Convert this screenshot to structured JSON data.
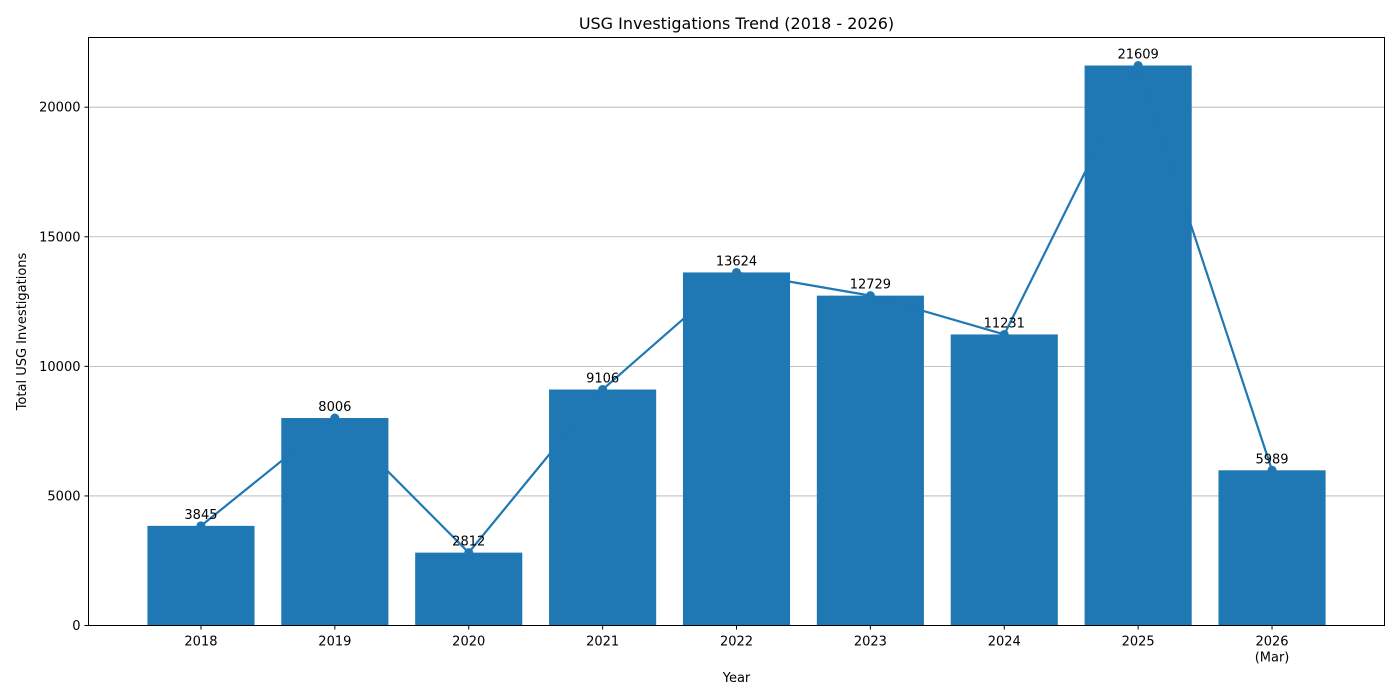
{
  "chart_data": {
    "type": "bar",
    "title": "USG Investigations Trend (2018 - 2026)",
    "xlabel": "Year",
    "ylabel": "Total USG Investigations",
    "categories": [
      "2018",
      "2019",
      "2020",
      "2021",
      "2022",
      "2023",
      "2024",
      "2025",
      "2026\n(Mar)"
    ],
    "values": [
      3845,
      8006,
      2812,
      9106,
      13624,
      12729,
      11231,
      21609,
      5989
    ],
    "overlay_line": true,
    "ylim": [
      0,
      22690
    ],
    "yticks": [
      0,
      5000,
      10000,
      15000,
      20000
    ],
    "grid": "y",
    "bar_color": "#1f77b4",
    "line_color": "#1f77b4"
  }
}
